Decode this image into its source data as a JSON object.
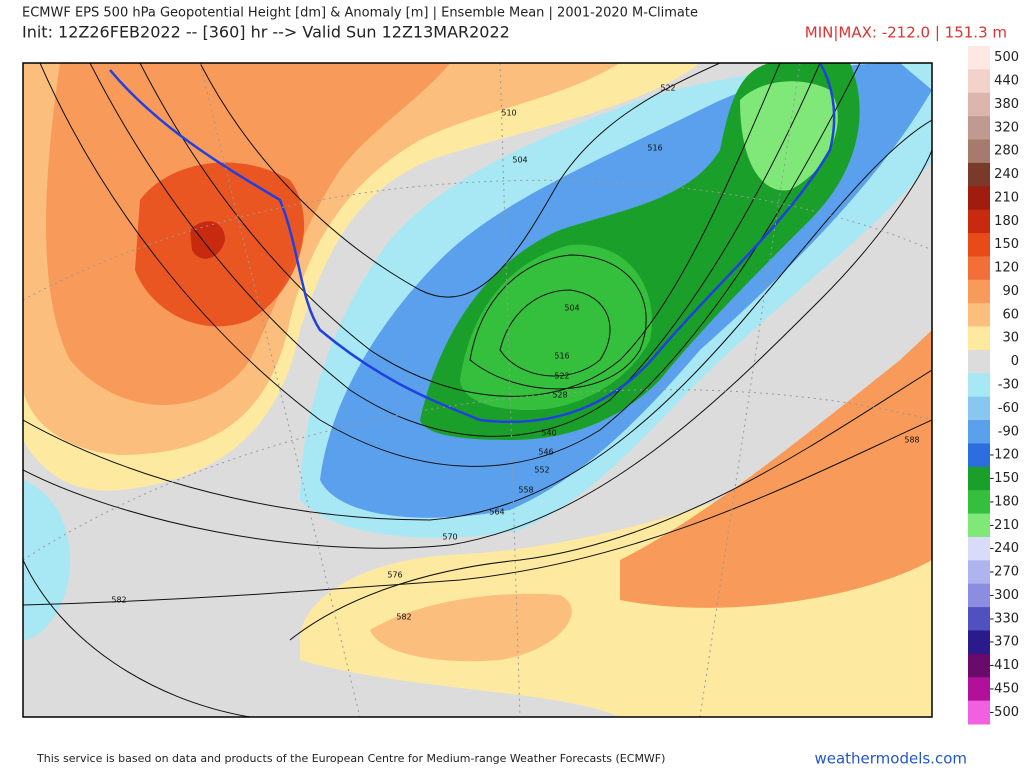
{
  "header": {
    "title": "ECMWF EPS 500 hPa Geopotential Height [dm] & Anomaly [m] | Ensemble Mean | 2001-2020 M-Climate",
    "init": "Init: 12Z26FEB2022 -- [360] hr --> Valid Sun 12Z13MAR2022",
    "minmax": "MIN|MAX: -212.0 | 151.3 m"
  },
  "map": {
    "contour_labels": [
      582,
      576,
      570,
      564,
      558,
      552,
      546,
      540,
      528,
      522,
      516,
      504,
      516,
      522,
      588,
      582,
      510,
      504
    ]
  },
  "colorbar": {
    "ticks": [
      500,
      440,
      380,
      320,
      280,
      240,
      210,
      180,
      150,
      120,
      90,
      60,
      30,
      0,
      -30,
      -60,
      -90,
      -120,
      -150,
      -180,
      -210,
      -240,
      -270,
      -300,
      -330,
      -370,
      -410,
      -450,
      -500
    ],
    "colors": [
      "#fde8e4",
      "#f3d2cc",
      "#dcb5ad",
      "#c09a90",
      "#a67a6c",
      "#7a3a2a",
      "#a01c0e",
      "#c82a10",
      "#e84a18",
      "#f27038",
      "#f89a5a",
      "#fbbe7c",
      "#fdeaa0",
      "#dcdcdc",
      "#a8e8f4",
      "#88c8f0",
      "#5aa0ec",
      "#2c6ee0",
      "#1aa02a",
      "#34c03c",
      "#80e878",
      "#d8dcf8",
      "#b0b4ee",
      "#8c8ce0",
      "#5050c0",
      "#2a1a8c",
      "#6a0a6a",
      "#b0109a",
      "#f060e0"
    ]
  },
  "footer": {
    "credit": "This service is based on data and products of the European Centre for Medium-range Weather Forecasts (ECMWF)",
    "site": "weathermodels.com"
  }
}
